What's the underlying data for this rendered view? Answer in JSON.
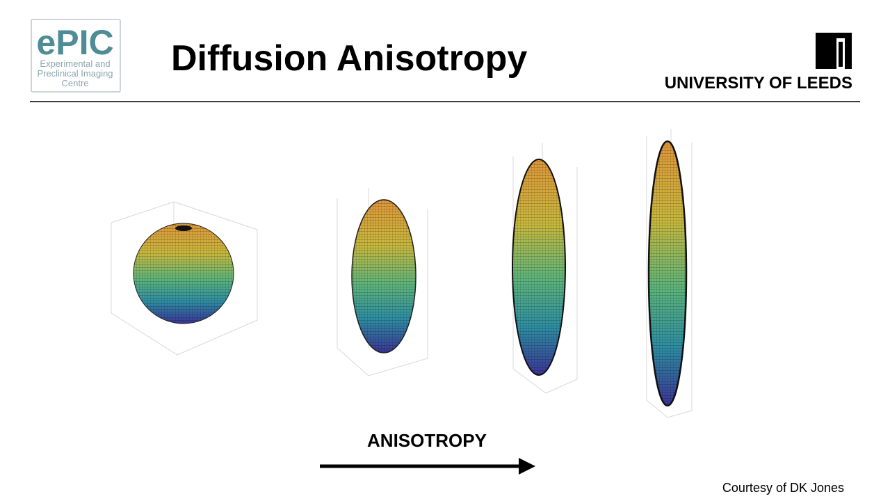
{
  "header": {
    "logo": {
      "name": "ePIC",
      "lines": [
        "Experimental and",
        "Preclinical Imaging",
        "Centre"
      ]
    },
    "title": "Diffusion Anisotropy",
    "university": "UNIVERSITY OF LEEDS"
  },
  "figure": {
    "arrow_label": "ANISOTROPY"
  },
  "credit": "Courtesy of DK Jones"
}
